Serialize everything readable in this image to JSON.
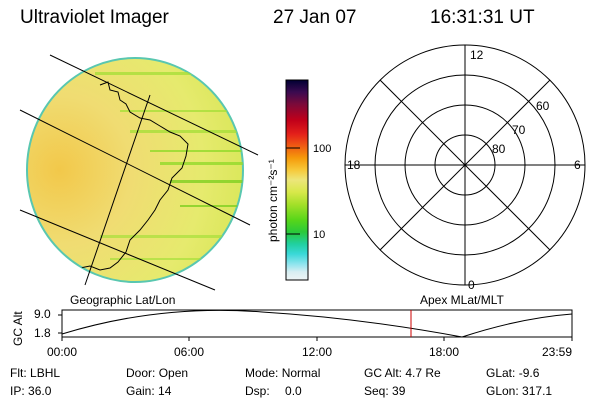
{
  "header": {
    "instrument": "Ultraviolet Imager",
    "date": "27 Jan 07",
    "time": "16:31:31 UT"
  },
  "colorbar": {
    "unit_label": "photon cm⁻²s⁻¹",
    "tick_labels": [
      "100",
      "10"
    ],
    "colors": [
      "#000033",
      "#3a0a50",
      "#7a0a3a",
      "#c0001a",
      "#e3201a",
      "#ef5b13",
      "#f59a0b",
      "#f7c93a",
      "#ede67a",
      "#d8e84a",
      "#a6e02a",
      "#58d61a",
      "#2ac93a",
      "#21d0a0",
      "#3ad8d8",
      "#8ee4ee",
      "#d8eef2",
      "#eef4f4"
    ]
  },
  "polar_grid": {
    "mlt_labels": [
      "12",
      "18",
      "6",
      "0"
    ],
    "mlat_labels": [
      "60",
      "70",
      "80"
    ]
  },
  "labels": {
    "left_panel": "Geographic Lat/Lon",
    "right_panel": "Apex MLat/MLT"
  },
  "altitude_plot": {
    "axis_label": "GC Alt",
    "y_ticks": [
      "9.0",
      "1.8"
    ],
    "x_ticks": [
      "00:00",
      "06:00",
      "12:00",
      "18:00",
      "23:59"
    ],
    "current_marker_color": "#cc0000"
  },
  "info": {
    "flt_label": "Flt:",
    "flt_value": "LBHL",
    "door_label": "Door:",
    "door_value": "Open",
    "mode_label": "Mode:",
    "mode_value": "Normal",
    "gcalt_label": "GC Alt:",
    "gcalt_value": "4.7 Re",
    "glat_label": "GLat:",
    "glat_value": "-9.6",
    "ip_label": "IP:",
    "ip_value": "36.0",
    "gain_label": "Gain:",
    "gain_value": "14",
    "dsp_label": "Dsp:",
    "dsp_value": "0.0",
    "seq_label": "Seq:",
    "seq_value": "39",
    "glon_label": "GLon:",
    "glon_value": "317.1"
  }
}
